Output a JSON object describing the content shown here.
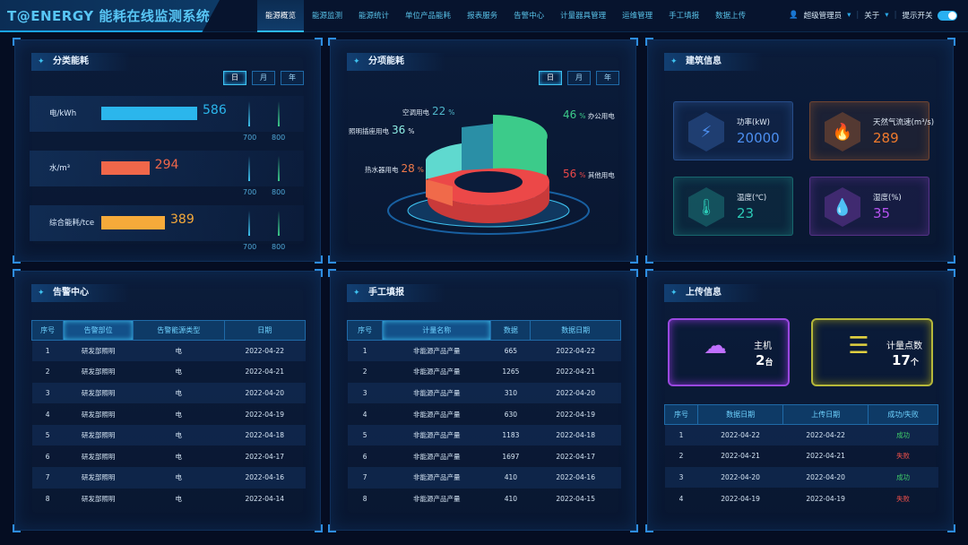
{
  "header": {
    "logo": "T@ENERGY 能耗在线监测系统",
    "nav": [
      "能源概览",
      "能源监测",
      "能源统计",
      "单位产品能耗",
      "报表服务",
      "告警中心",
      "计量器具管理",
      "运维管理",
      "手工填报",
      "数据上传"
    ],
    "active": 0,
    "user": "超级管理员",
    "about": "关于",
    "hint": "提示开关",
    "hint_on": true
  },
  "tabs": [
    "日",
    "月",
    "年"
  ],
  "category": {
    "title": "分类能耗",
    "items": [
      {
        "label": "电/kWh",
        "value": 586,
        "color": "#2bb6ec"
      },
      {
        "label": "水/m³",
        "value": 294,
        "color": "#f0674a"
      },
      {
        "label": "综合能耗/tce",
        "value": 389,
        "color": "#f6aa3a"
      }
    ],
    "ticks": [
      "700",
      "800"
    ]
  },
  "itemized": {
    "title": "分项能耗",
    "slices": [
      {
        "label": "空调用电",
        "pct": "22",
        "color": "#2a8fa6"
      },
      {
        "label": "照明插座用电",
        "pct": "36",
        "color": "#5fd9cf"
      },
      {
        "label": "热水器用电",
        "pct": "28",
        "color": "#f06a4a"
      },
      {
        "label": "办公用电",
        "pct": "46",
        "color": "#3ccb8a"
      },
      {
        "label": "其他用电",
        "pct": "56",
        "color": "#ec4848"
      }
    ],
    "unit": "%"
  },
  "building": {
    "title": "建筑信息",
    "cards": [
      {
        "label": "功率(kW)",
        "value": "20000",
        "color": "#4c8ff0",
        "icon": "power-icon"
      },
      {
        "label": "天然气流速(m³/s)",
        "value": "289",
        "color": "#f07a2c",
        "icon": "flame-icon"
      },
      {
        "label": "温度(℃)",
        "value": "23",
        "color": "#2cc9b6",
        "icon": "thermometer-icon"
      },
      {
        "label": "湿度(%)",
        "value": "35",
        "color": "#b552f0",
        "icon": "droplet-icon"
      }
    ]
  },
  "alarms": {
    "title": "告警中心",
    "columns": [
      "序号",
      "告警部位",
      "告警能源类型",
      "日期"
    ],
    "rows": [
      [
        "1",
        "研发部照明",
        "电",
        "2022-04-22"
      ],
      [
        "2",
        "研发部照明",
        "电",
        "2022-04-21"
      ],
      [
        "3",
        "研发部照明",
        "电",
        "2022-04-20"
      ],
      [
        "4",
        "研发部照明",
        "电",
        "2022-04-19"
      ],
      [
        "5",
        "研发部照明",
        "电",
        "2022-04-18"
      ],
      [
        "6",
        "研发部照明",
        "电",
        "2022-04-17"
      ],
      [
        "7",
        "研发部照明",
        "电",
        "2022-04-16"
      ],
      [
        "8",
        "研发部照明",
        "电",
        "2022-04-14"
      ]
    ]
  },
  "manual": {
    "title": "手工填报",
    "columns": [
      "序号",
      "计量名称",
      "数据",
      "数据日期"
    ],
    "rows": [
      [
        "1",
        "非能源产品产量",
        "665",
        "2022-04-22"
      ],
      [
        "2",
        "非能源产品产量",
        "1265",
        "2022-04-21"
      ],
      [
        "3",
        "非能源产品产量",
        "310",
        "2022-04-20"
      ],
      [
        "4",
        "非能源产品产量",
        "630",
        "2022-04-19"
      ],
      [
        "5",
        "非能源产品产量",
        "1183",
        "2022-04-18"
      ],
      [
        "6",
        "非能源产品产量",
        "1697",
        "2022-04-17"
      ],
      [
        "7",
        "非能源产品产量",
        "410",
        "2022-04-16"
      ],
      [
        "8",
        "非能源产品产量",
        "410",
        "2022-04-15"
      ]
    ]
  },
  "upload": {
    "title": "上传信息",
    "hosts": {
      "label": "主机",
      "value": "2",
      "unit": "台"
    },
    "points": {
      "label": "计量点数",
      "value": "17",
      "unit": "个"
    },
    "columns": [
      "序号",
      "数据日期",
      "上传日期",
      "成功/失败"
    ],
    "rows": [
      [
        "1",
        "2022-04-22",
        "2022-04-22",
        "成功"
      ],
      [
        "2",
        "2022-04-21",
        "2022-04-21",
        "失败"
      ],
      [
        "3",
        "2022-04-20",
        "2022-04-20",
        "成功"
      ],
      [
        "4",
        "2022-04-19",
        "2022-04-19",
        "失败"
      ]
    ],
    "ok_color": "#3fcf6a",
    "fail_color": "#f0504a"
  }
}
